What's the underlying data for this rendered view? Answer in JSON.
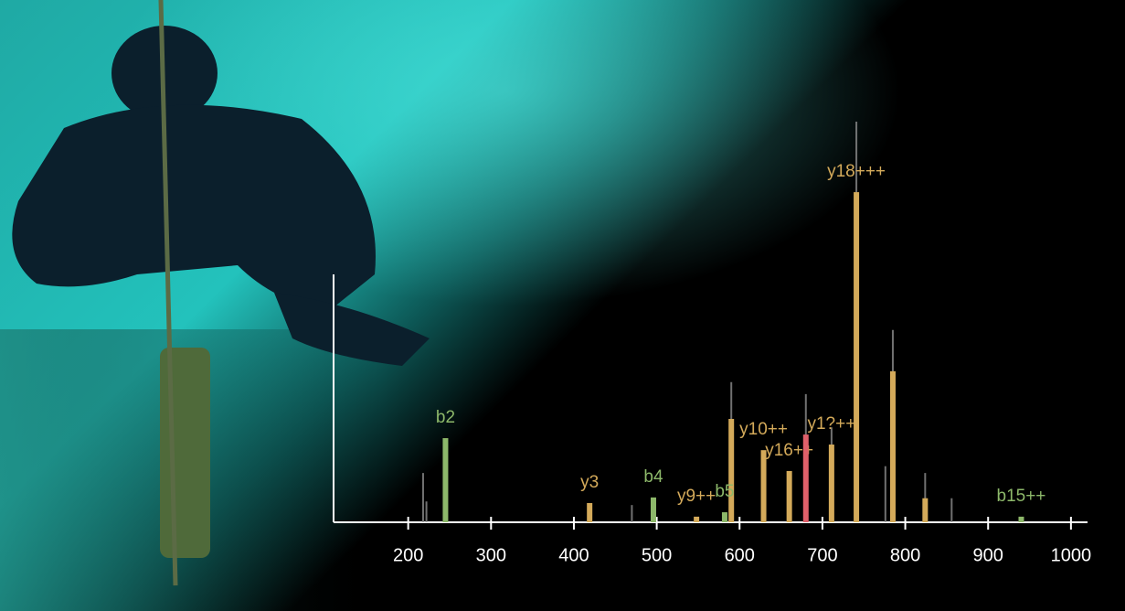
{
  "chart_data": {
    "type": "bar",
    "xlim": [
      100,
      1020
    ],
    "xticks": [
      200,
      300,
      400,
      500,
      600,
      700,
      800,
      900,
      1000
    ],
    "ylim": [
      0,
      100
    ],
    "series": [
      {
        "color": "#8e8e8e",
        "style": "line",
        "x": [
          218,
          222,
          470,
          590,
          680,
          711,
          741,
          776,
          785,
          824,
          856
        ],
        "values": [
          12.3,
          5.2,
          4.3,
          35,
          32,
          23.7,
          100,
          14,
          48,
          12.3,
          6
        ]
      },
      {
        "color": "#d4aa5a",
        "x": [
          419,
          548,
          590,
          629,
          660,
          711,
          741,
          785,
          824
        ],
        "values": [
          4.8,
          1.4,
          25.8,
          18,
          12.8,
          19.4,
          82.4,
          37.7,
          6
        ],
        "labels": [
          "y3",
          "y9++",
          null,
          "y10++",
          "y16++",
          "y1?++",
          "y18+++",
          null,
          null
        ]
      },
      {
        "color": "#8db86a",
        "x": [
          245,
          496,
          582,
          940
        ],
        "values": [
          21,
          6.2,
          2.5,
          1.4
        ],
        "labels": [
          "b2",
          "b4",
          "b5",
          "b15++"
        ]
      },
      {
        "color": "#e0606a",
        "x": [
          680
        ],
        "values": [
          21.9
        ]
      }
    ]
  }
}
